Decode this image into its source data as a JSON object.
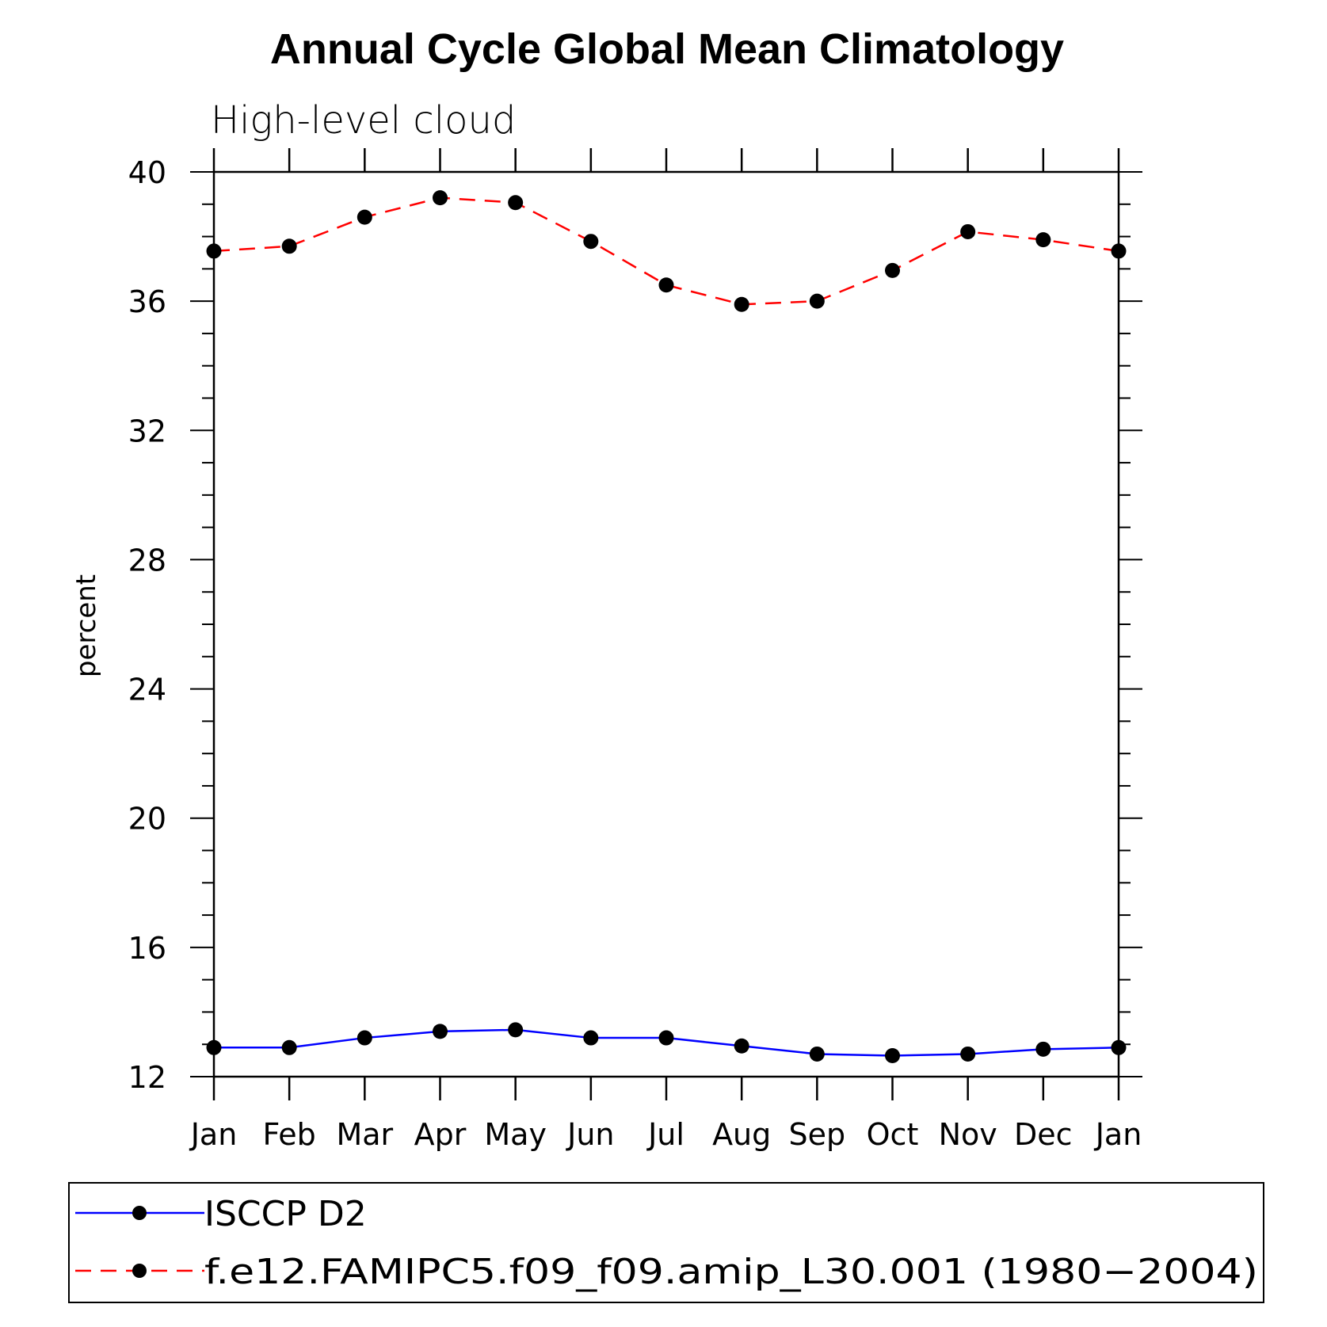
{
  "chart_data": {
    "type": "line",
    "title": "Annual Cycle Global Mean Climatology",
    "subtitle": "High-level cloud",
    "ylabel": "percent",
    "xlabel": "",
    "categories": [
      "Jan",
      "Feb",
      "Mar",
      "Apr",
      "May",
      "Jun",
      "Jul",
      "Aug",
      "Sep",
      "Oct",
      "Nov",
      "Dec",
      "Jan"
    ],
    "ylim": [
      12,
      40
    ],
    "yticks": [
      12,
      16,
      20,
      24,
      28,
      32,
      36,
      40
    ],
    "grid": false,
    "legend_position": "bottom",
    "series": [
      {
        "name": "ISCCP D2",
        "color": "#0000ff",
        "line_style": "solid",
        "marker": "filled-circle",
        "values": [
          12.9,
          12.9,
          13.2,
          13.4,
          13.45,
          13.2,
          13.2,
          12.95,
          12.7,
          12.65,
          12.7,
          12.85,
          12.9
        ]
      },
      {
        "name": "f.e12.FAMIPC5.f09_f09.amip_L30.001 (1980−2004)",
        "color": "#ff0000",
        "line_style": "dashed",
        "marker": "filled-circle",
        "values": [
          37.55,
          37.7,
          38.6,
          39.2,
          39.05,
          37.85,
          36.5,
          35.9,
          36.0,
          36.95,
          38.15,
          37.9,
          37.55
        ]
      }
    ]
  }
}
